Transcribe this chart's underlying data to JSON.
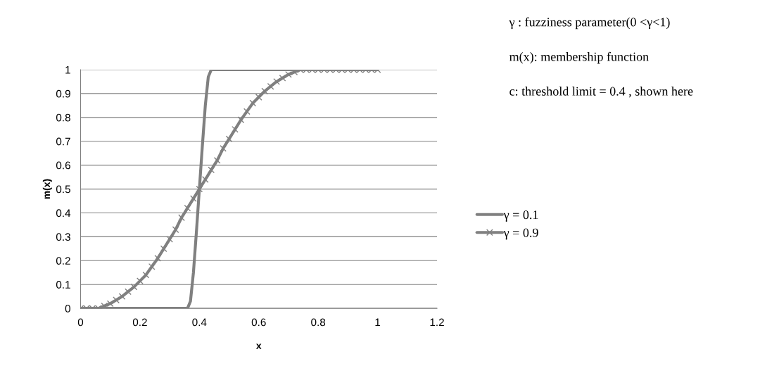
{
  "chart_data": {
    "type": "line",
    "xlabel": "x",
    "ylabel": "m(x)",
    "xlim": [
      0,
      1.2
    ],
    "xticks": [
      0,
      0.2,
      0.4,
      0.6,
      0.8,
      1,
      1.2
    ],
    "ylim": [
      0,
      1
    ],
    "yticks": [
      0,
      0.1,
      0.2,
      0.3,
      0.4,
      0.5,
      0.6,
      0.7,
      0.8,
      0.9,
      1
    ],
    "grid": "y",
    "legend": "right",
    "annotations": [
      "γ : fuzziness parameter(0 <γ<1)",
      "m(x): membership function",
      "c: threshold limit = 0.4 , shown here"
    ],
    "series": [
      {
        "name": "γ = 0.1",
        "color": "#808080",
        "marker": "none",
        "x": [
          0,
          0.2,
          0.36,
          0.37,
          0.38,
          0.39,
          0.4,
          0.41,
          0.42,
          0.43,
          0.44,
          0.6,
          0.8,
          1
        ],
        "values": [
          0,
          0,
          0,
          0.03,
          0.15,
          0.32,
          0.5,
          0.68,
          0.85,
          0.97,
          1,
          1,
          1,
          1
        ]
      },
      {
        "name": "γ = 0.9",
        "color": "#808080",
        "marker": "cross",
        "x": [
          0,
          0.02,
          0.04,
          0.06,
          0.08,
          0.1,
          0.12,
          0.14,
          0.16,
          0.18,
          0.2,
          0.22,
          0.24,
          0.26,
          0.28,
          0.3,
          0.32,
          0.34,
          0.36,
          0.38,
          0.4,
          0.42,
          0.44,
          0.46,
          0.48,
          0.5,
          0.52,
          0.54,
          0.56,
          0.58,
          0.6,
          0.62,
          0.64,
          0.66,
          0.68,
          0.7,
          0.72,
          0.74,
          0.76,
          0.78,
          0.8,
          0.82,
          0.84,
          0.86,
          0.88,
          0.9,
          0.92,
          0.94,
          0.96,
          0.98,
          1
        ],
        "values": [
          0,
          0,
          0,
          0,
          0.01,
          0.02,
          0.035,
          0.05,
          0.07,
          0.09,
          0.115,
          0.14,
          0.175,
          0.21,
          0.25,
          0.29,
          0.33,
          0.38,
          0.42,
          0.46,
          0.5,
          0.54,
          0.58,
          0.62,
          0.67,
          0.71,
          0.75,
          0.79,
          0.825,
          0.86,
          0.885,
          0.91,
          0.93,
          0.95,
          0.965,
          0.98,
          0.99,
          1,
          1,
          1,
          1,
          1,
          1,
          1,
          1,
          1,
          1,
          1,
          1,
          1,
          1
        ]
      }
    ]
  }
}
